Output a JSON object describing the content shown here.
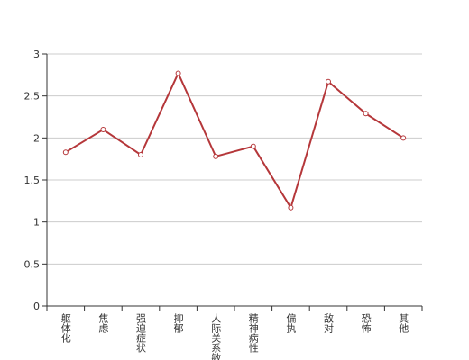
{
  "chart_data": {
    "type": "line",
    "categories": [
      "躯体化",
      "焦虑",
      "强迫症状",
      "抑郁",
      "人际关系敏感",
      "精神病性",
      "偏执",
      "敌对",
      "恐怖",
      "其他"
    ],
    "series": [
      {
        "color": "#b5373a",
        "values": [
          1.83,
          2.1,
          1.8,
          2.77,
          1.78,
          1.9,
          1.17,
          2.67,
          2.29,
          2.0
        ]
      }
    ],
    "ylim": [
      0,
      3
    ],
    "yticks": [
      0,
      0.5,
      1,
      1.5,
      2,
      2.5,
      3
    ],
    "grid": true
  }
}
